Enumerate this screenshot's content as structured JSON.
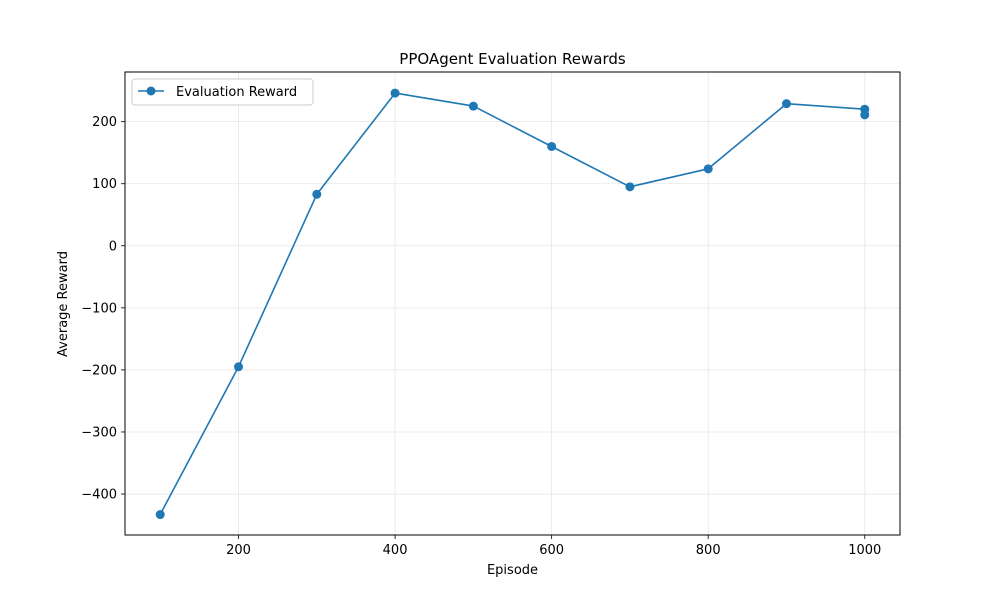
{
  "chart_data": {
    "type": "line",
    "title": "PPOAgent Evaluation Rewards",
    "xlabel": "Episode",
    "ylabel": "Average Reward",
    "xlim": [
      55,
      1045
    ],
    "ylim": [
      -466,
      280
    ],
    "x_ticks": [
      200,
      400,
      600,
      800,
      1000
    ],
    "y_ticks": [
      -400,
      -300,
      -200,
      -100,
      0,
      100,
      200
    ],
    "grid": true,
    "legend_position": "upper left",
    "series": [
      {
        "name": "Evaluation Reward",
        "color": "#1f77b4",
        "marker": "circle",
        "x": [
          100,
          200,
          300,
          400,
          500,
          600,
          700,
          800,
          900,
          1000,
          1000
        ],
        "y": [
          -433,
          -195,
          83,
          246,
          225,
          160,
          95,
          124,
          229,
          220,
          211
        ]
      }
    ]
  }
}
